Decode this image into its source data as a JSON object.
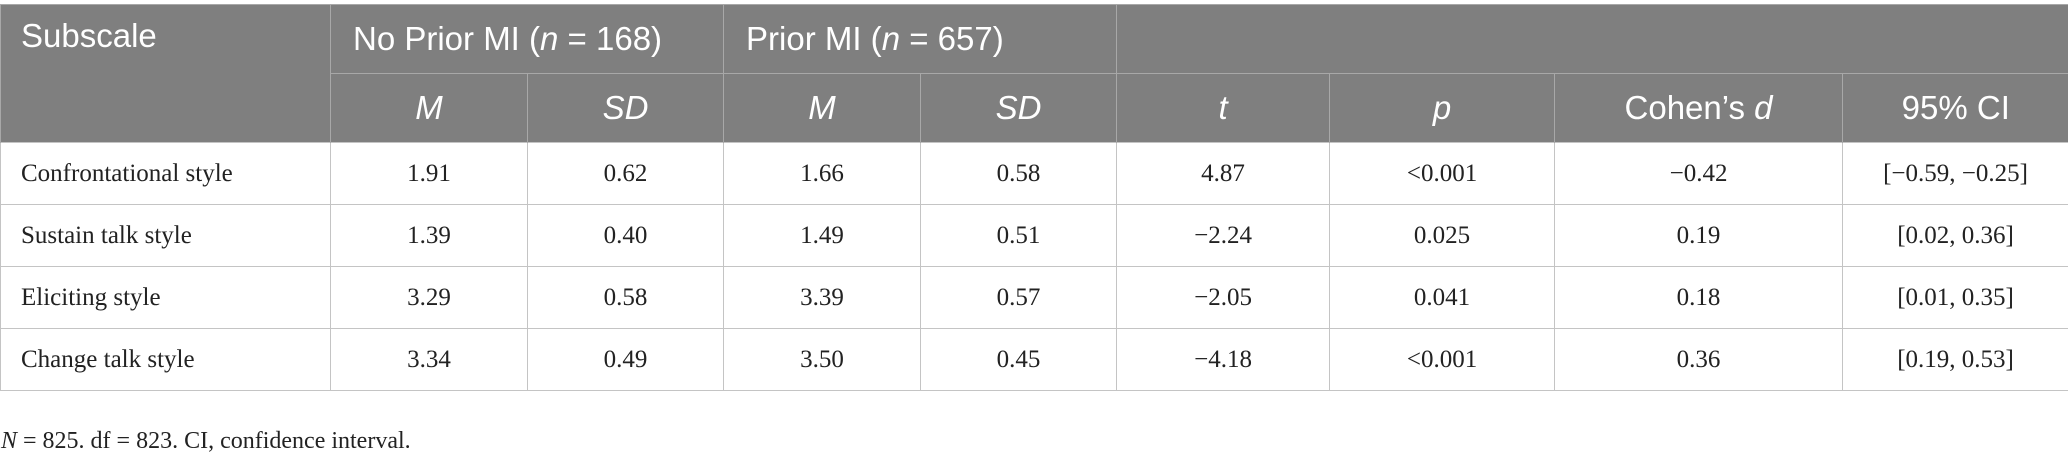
{
  "header": {
    "subscale": "Subscale",
    "group1_prefix": "No Prior MI (",
    "group1_n": "n",
    "group1_suffix": " = 168)",
    "group2_prefix": "Prior MI (",
    "group2_n": "n",
    "group2_suffix": " = 657)",
    "m1": "M",
    "sd1": "SD",
    "m2": "M",
    "sd2": "SD",
    "t": "t",
    "p": "p",
    "cohen_prefix": "Cohen’s ",
    "cohen_d": "d",
    "ci": "95% CI"
  },
  "rows": [
    {
      "name": "Confrontational style",
      "m1": "1.91",
      "sd1": "0.62",
      "m2": "1.66",
      "sd2": "0.58",
      "t": "4.87",
      "p": "<0.001",
      "d": "−0.42",
      "ci": "[−0.59, −0.25]"
    },
    {
      "name": "Sustain talk style",
      "m1": "1.39",
      "sd1": "0.40",
      "m2": "1.49",
      "sd2": "0.51",
      "t": "−2.24",
      "p": "0.025",
      "d": "0.19",
      "ci": "[0.02, 0.36]"
    },
    {
      "name": "Eliciting style",
      "m1": "3.29",
      "sd1": "0.58",
      "m2": "3.39",
      "sd2": "0.57",
      "t": "−2.05",
      "p": "0.041",
      "d": "0.18",
      "ci": "[0.01, 0.35]"
    },
    {
      "name": "Change talk style",
      "m1": "3.34",
      "sd1": "0.49",
      "m2": "3.50",
      "sd2": "0.45",
      "t": "−4.18",
      "p": "<0.001",
      "d": "0.36",
      "ci": "[0.19, 0.53]"
    }
  ],
  "note": {
    "n_label": "N",
    "text": " = 825. df = 823. CI, confidence interval."
  }
}
